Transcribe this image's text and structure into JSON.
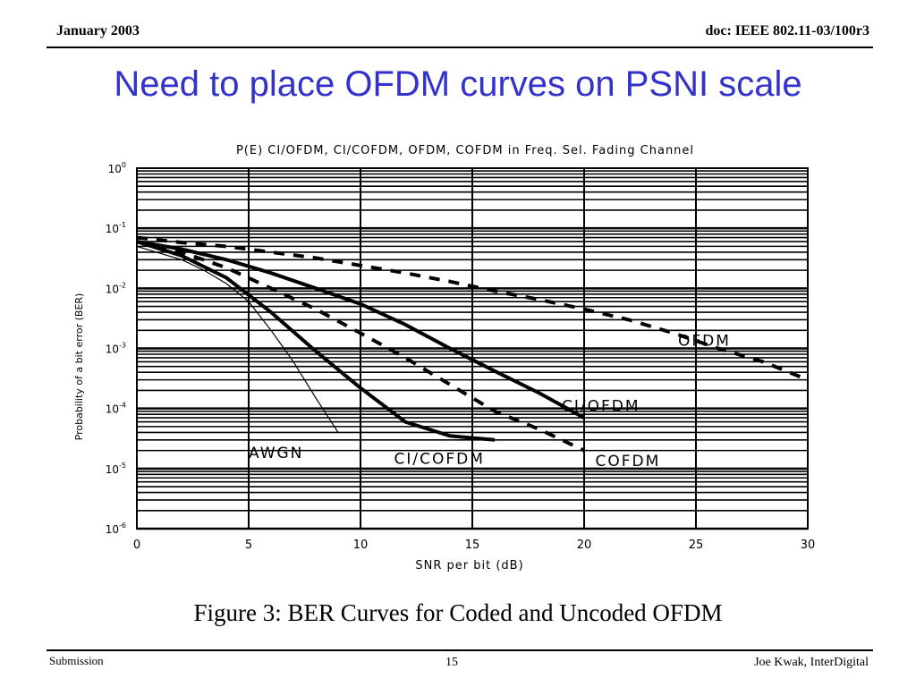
{
  "header": {
    "date": "January 2003",
    "doc": "doc: IEEE 802.11-03/100r3"
  },
  "slide": {
    "title": "Need to place OFDM curves on PSNI scale",
    "caption": "Figure 3: BER Curves for Coded and Uncoded OFDM"
  },
  "footer": {
    "left": "Submission",
    "page": "15",
    "author": "Joe Kwak, InterDigital"
  },
  "chart_data": {
    "type": "line",
    "title": "P(E) CI/OFDM, CI/COFDM, OFDM, COFDM in Freq. Sel. Fading Channel",
    "xlabel": "SNR per bit (dB)",
    "ylabel": "Probability of a bit error (BER)",
    "xlim": [
      0,
      30
    ],
    "ylim": [
      1e-06,
      1
    ],
    "yscale": "log",
    "grid": true,
    "xticks": [
      "0",
      "5",
      "10",
      "15",
      "20",
      "25",
      "30"
    ],
    "ytick_exponents": [
      "0",
      "-1",
      "-2",
      "-3",
      "-4",
      "-5",
      "-6"
    ],
    "series": [
      {
        "name": "OFDM",
        "style": "dashed",
        "x": [
          0,
          2,
          4,
          6,
          8,
          10,
          12,
          14,
          16,
          18,
          20,
          22,
          24,
          26,
          28,
          30
        ],
        "y": [
          0.07,
          0.058,
          0.05,
          0.04,
          0.032,
          0.024,
          0.018,
          0.013,
          0.009,
          0.0065,
          0.0045,
          0.003,
          0.0018,
          0.001,
          0.0006,
          0.0003
        ]
      },
      {
        "name": "CI/OFDM",
        "style": "solid",
        "x": [
          0,
          2,
          4,
          6,
          8,
          10,
          12,
          14,
          16,
          18,
          20
        ],
        "y": [
          0.06,
          0.045,
          0.03,
          0.018,
          0.01,
          0.0055,
          0.0025,
          0.001,
          0.00042,
          0.00018,
          7e-05
        ]
      },
      {
        "name": "COFDM",
        "style": "dashed",
        "x": [
          0,
          2,
          4,
          6,
          8,
          10,
          12,
          14,
          16,
          18,
          20
        ],
        "y": [
          0.06,
          0.04,
          0.022,
          0.01,
          0.0045,
          0.0018,
          0.0007,
          0.00025,
          9e-05,
          4.5e-05,
          2e-05
        ]
      },
      {
        "name": "CI/COFDM",
        "style": "solid",
        "x": [
          0,
          2,
          4,
          6,
          8,
          10,
          12,
          14,
          16
        ],
        "y": [
          0.06,
          0.035,
          0.015,
          0.004,
          0.0009,
          0.00022,
          6e-05,
          3.5e-05,
          3e-05
        ]
      },
      {
        "name": "AWGN",
        "style": "thin",
        "x": [
          0,
          2,
          3,
          4,
          5,
          6,
          7,
          8,
          9
        ],
        "y": [
          0.05,
          0.03,
          0.02,
          0.012,
          0.006,
          0.002,
          0.0006,
          0.00015,
          4e-05
        ]
      }
    ],
    "annotations": [
      {
        "text": "OFDM",
        "x": 24.2,
        "y": 0.0011
      },
      {
        "text": "CI/OFDM",
        "x": 19.0,
        "y": 9e-05
      },
      {
        "text": "COFDM",
        "x": 20.5,
        "y": 1.1e-05
      },
      {
        "text": "CI/COFDM",
        "x": 11.5,
        "y": 1.2e-05
      },
      {
        "text": "AWGN",
        "x": 5.0,
        "y": 1.5e-05
      }
    ]
  }
}
